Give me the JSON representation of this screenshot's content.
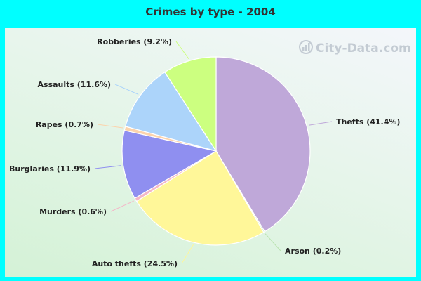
{
  "colors": {
    "background": "#00ffff",
    "slices": [
      "#bfa8d9",
      "#b9e3b0",
      "#fff799",
      "#f4b8c8",
      "#8f8ff0",
      "#fcd3ac",
      "#acd4fa",
      "#ccff80"
    ]
  },
  "watermark": {
    "text": "City-Data.com",
    "icon": "city-data-logo"
  },
  "chart_data": {
    "type": "pie",
    "title": "Crimes by type - 2004",
    "start_angle_deg": 0,
    "direction": "clockwise",
    "slices": [
      {
        "name": "Thefts",
        "value": 41.4,
        "label": "Thefts (41.4%)"
      },
      {
        "name": "Arson",
        "value": 0.2,
        "label": "Arson (0.2%)"
      },
      {
        "name": "Auto thefts",
        "value": 24.5,
        "label": "Auto thefts (24.5%)"
      },
      {
        "name": "Murders",
        "value": 0.6,
        "label": "Murders (0.6%)"
      },
      {
        "name": "Burglaries",
        "value": 11.9,
        "label": "Burglaries (11.9%)"
      },
      {
        "name": "Rapes",
        "value": 0.7,
        "label": "Rapes (0.7%)"
      },
      {
        "name": "Assaults",
        "value": 11.6,
        "label": "Assaults (11.6%)"
      },
      {
        "name": "Robberies",
        "value": 9.2,
        "label": "Robberies (9.2%)"
      }
    ]
  }
}
